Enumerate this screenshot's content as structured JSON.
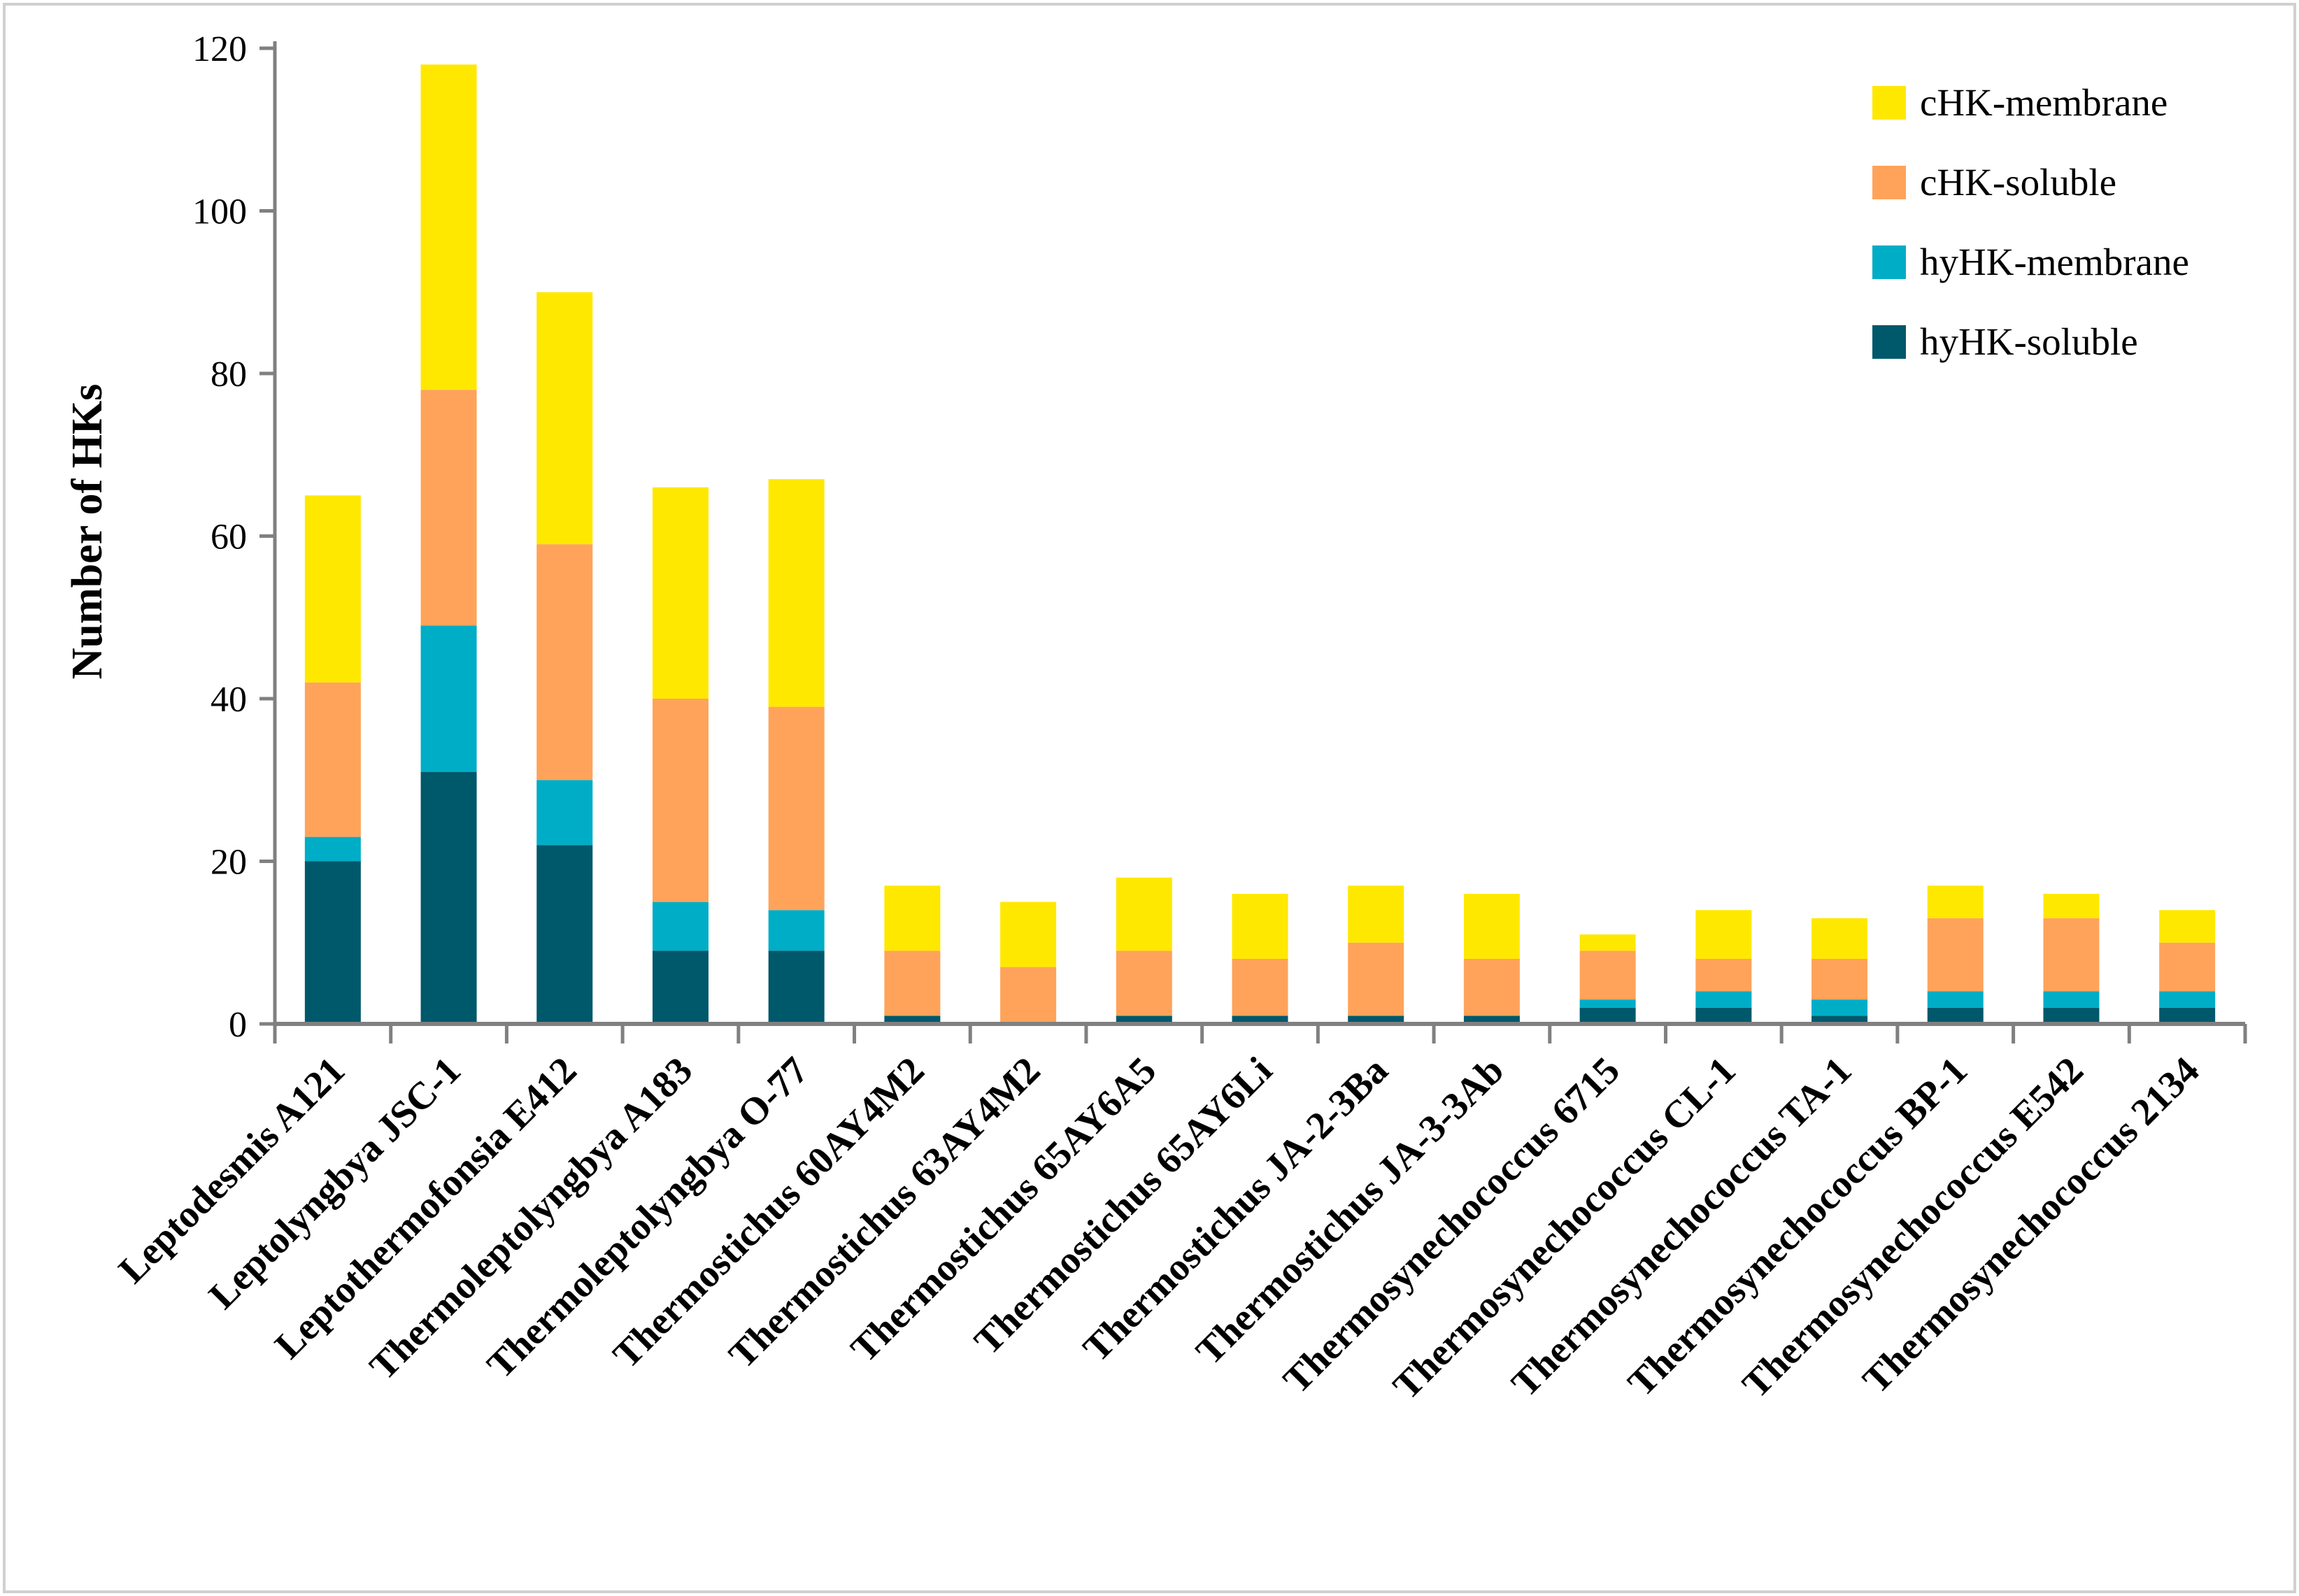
{
  "chart_data": {
    "type": "bar",
    "stacked": true,
    "title": "",
    "xlabel": "",
    "ylabel": "Number of HKs",
    "ylim": [
      0,
      120
    ],
    "yticks": [
      0,
      20,
      40,
      60,
      80,
      100,
      120
    ],
    "grid": false,
    "legend_position": "top-right",
    "categories": [
      "Leptodesmis A121",
      "Leptolyngbya JSC-1",
      "Leptothermofonsia E412",
      "Thermoleptolyngbya A183",
      "Thermoleptolyngbya O-77",
      "Thermostichus 60AY4M2",
      "Thermostichus 63AY4M2",
      "Thermostichus 65AY6A5",
      "Thermostichus 65AY6Li",
      "Thermostichus JA-2-3Ba",
      "Thermostichus JA-3-3Ab",
      "Thermosynechococcus 6715",
      "Thermosynechococcus CL-1",
      "Thermosynechococcus TA-1",
      "Thermosynechococcus BP-1",
      "Thermosynechococcus E542",
      "Thermosynechococcus 2134"
    ],
    "series": [
      {
        "name": "hyHK-soluble",
        "color": "#00586b",
        "values": [
          20,
          31,
          22,
          9,
          9,
          1,
          0,
          1,
          1,
          1,
          1,
          2,
          2,
          1,
          2,
          2,
          2
        ]
      },
      {
        "name": "hyHK-membrane",
        "color": "#00adc6",
        "values": [
          3,
          18,
          8,
          6,
          5,
          0,
          0,
          0,
          0,
          0,
          0,
          1,
          2,
          2,
          2,
          2,
          2
        ]
      },
      {
        "name": "cHK-soluble",
        "color": "#ffa35a",
        "values": [
          19,
          29,
          29,
          25,
          25,
          8,
          7,
          8,
          7,
          9,
          7,
          6,
          4,
          5,
          9,
          9,
          6
        ]
      },
      {
        "name": "cHK-membrane",
        "color": "#ffe800",
        "values": [
          23,
          40,
          31,
          26,
          28,
          8,
          8,
          9,
          8,
          7,
          8,
          2,
          6,
          5,
          4,
          3,
          4
        ]
      }
    ],
    "legend_order": [
      "cHK-membrane",
      "cHK-soluble",
      "hyHK-membrane",
      "hyHK-soluble"
    ]
  }
}
